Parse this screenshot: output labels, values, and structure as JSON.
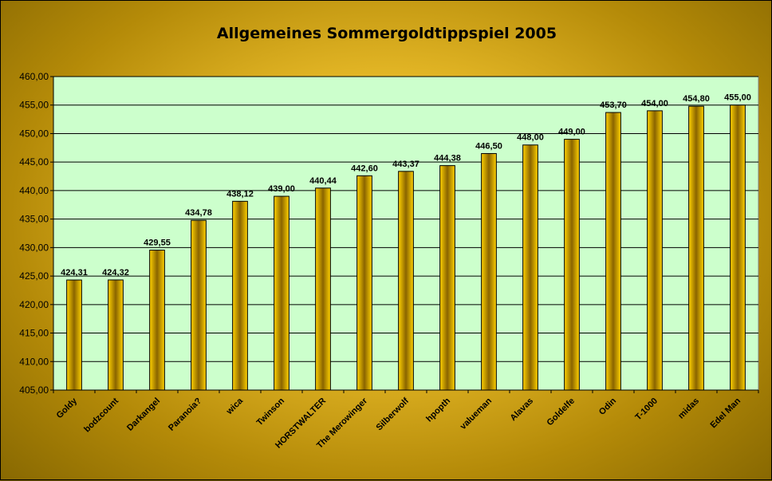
{
  "chart_data": {
    "type": "bar",
    "title": "Allgemeines Sommergoldtippspiel 2005",
    "xlabel": "",
    "ylabel": "",
    "categories": [
      "Goldy",
      "bodzcount",
      "Darkangel",
      "Paranoia?",
      "wica",
      "Twinson",
      "HORSTWALTER",
      "The Merowinger",
      "Silberwolf",
      "hpopth",
      "valueman",
      "Alavas",
      "Goldelfe",
      "Odin",
      "T-1000",
      "midas",
      "Edel Man"
    ],
    "values": [
      424.31,
      424.32,
      429.55,
      434.78,
      438.12,
      439.0,
      440.44,
      442.6,
      443.37,
      444.38,
      446.5,
      448.0,
      449.0,
      453.7,
      454.0,
      454.8,
      455.0
    ],
    "value_labels": [
      "424,31",
      "424,32",
      "429,55",
      "434,78",
      "438,12",
      "439,00",
      "440,44",
      "442,60",
      "443,37",
      "444,38",
      "446,50",
      "448,00",
      "449,00",
      "453,70",
      "454,00",
      "454,80",
      "455,00"
    ],
    "ylim": [
      405,
      460
    ],
    "yticks": [
      405,
      410,
      415,
      420,
      425,
      430,
      435,
      440,
      445,
      450,
      455,
      460
    ],
    "ytick_labels": [
      "405,00",
      "410,00",
      "415,00",
      "420,00",
      "425,00",
      "430,00",
      "435,00",
      "440,00",
      "445,00",
      "450,00",
      "455,00",
      "460,00"
    ],
    "grid": true,
    "legend": "none",
    "colors": {
      "plot_background": "#ccffcc",
      "bar_edge": "#ffd200",
      "bar_center": "#8a6400",
      "bar_outline": "#000000",
      "gridline": "#000000"
    }
  }
}
